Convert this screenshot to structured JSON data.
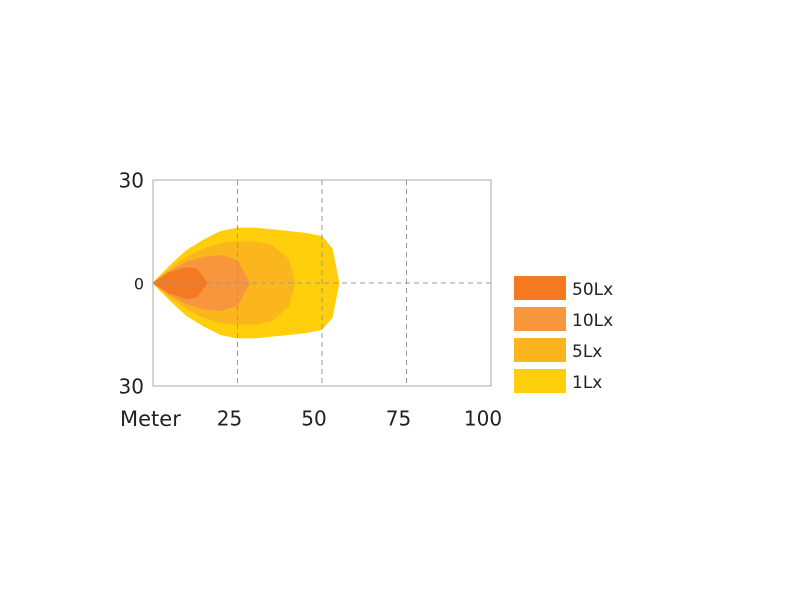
{
  "chart_data": {
    "type": "contour",
    "xlabel": "Meter",
    "xlim": [
      0,
      100
    ],
    "xticks": [
      25,
      50,
      75,
      100
    ],
    "ylim": [
      -30,
      30
    ],
    "yticks": [
      {
        "value": -30,
        "label": "30"
      },
      0,
      30
    ],
    "grid": true,
    "legend": "right",
    "series": [
      {
        "name": "50Lx",
        "color": "#f47920",
        "x": [
          0,
          5,
          10,
          13,
          16
        ],
        "values": [
          0,
          3,
          4.5,
          4,
          0
        ]
      },
      {
        "name": "10Lx",
        "color": "#f7963c",
        "x": [
          0,
          5,
          10,
          15,
          20,
          25,
          28.5
        ],
        "values": [
          0,
          3.5,
          6,
          7.5,
          8,
          6.5,
          0
        ]
      },
      {
        "name": "5Lx",
        "color": "#fbb61e",
        "x": [
          0,
          5,
          10,
          15,
          20,
          25,
          30,
          35,
          40,
          42
        ],
        "values": [
          0,
          4,
          7.5,
          10,
          11.5,
          12,
          12,
          11,
          7,
          0
        ]
      },
      {
        "name": "1Lx",
        "color": "#fecf0a",
        "x": [
          0,
          5,
          10,
          15,
          20,
          25,
          30,
          35,
          40,
          45,
          50,
          53,
          55
        ],
        "values": [
          0,
          5,
          9.5,
          12.5,
          15,
          16,
          16,
          15.5,
          15,
          14.5,
          13.5,
          10,
          0
        ]
      }
    ]
  }
}
